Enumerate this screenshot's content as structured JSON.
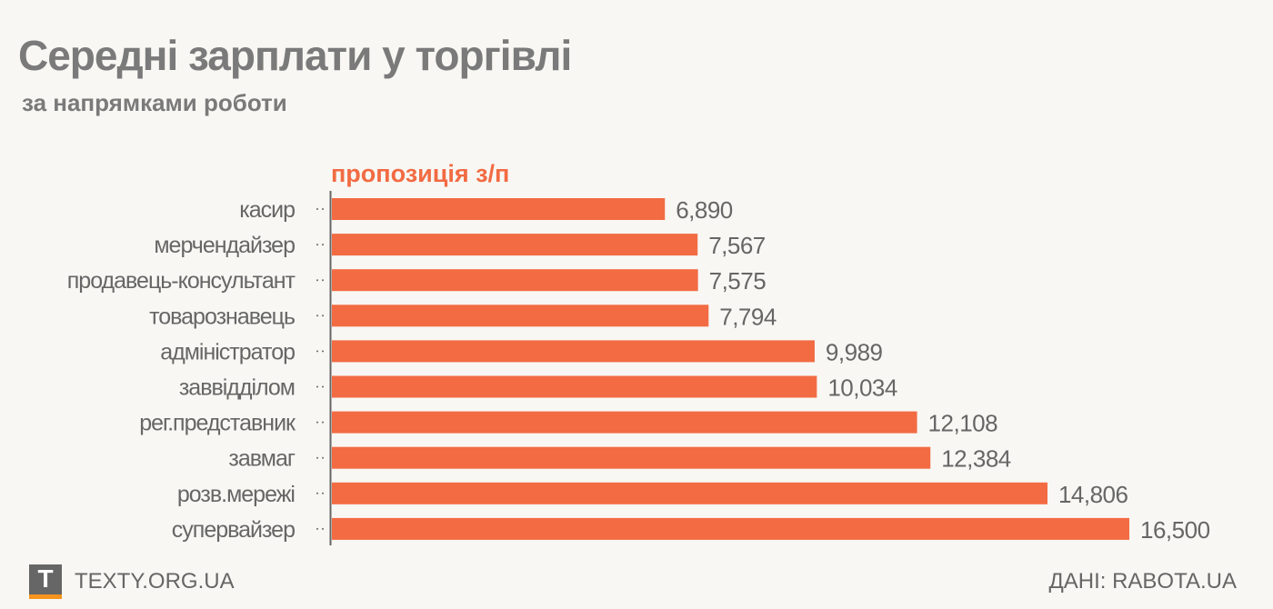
{
  "title": "Середні зарплати у торгівлі",
  "subtitle": "за напрямками роботи",
  "footer": {
    "logo_letter": "T",
    "site": "TEXTY.ORG.UA",
    "source": "ДАНІ: RABOTA.UA"
  },
  "colors": {
    "bar": "#f26b43",
    "text": "#666666",
    "background": "#f8f7f3"
  },
  "chart_data": {
    "type": "bar",
    "orientation": "horizontal",
    "title": "Середні зарплати у торгівлі",
    "subtitle": "за напрямками роботи",
    "series_name": "пропозиція з/п",
    "categories": [
      "касир",
      "мерчендайзер",
      "продавець-консультант",
      "товарознавець",
      "адміністратор",
      "заввідділом",
      "рег.представник",
      "завмаг",
      "розв.мережі",
      "супервайзер"
    ],
    "values": [
      6890,
      7567,
      7575,
      7794,
      9989,
      10034,
      12108,
      12384,
      14806,
      16500
    ],
    "value_labels": [
      "6,890",
      "7,567",
      "7,575",
      "7,794",
      "9,989",
      "10,034",
      "12,108",
      "12,384",
      "14,806",
      "16,500"
    ],
    "xlim": [
      0,
      16500
    ],
    "grid": false
  }
}
